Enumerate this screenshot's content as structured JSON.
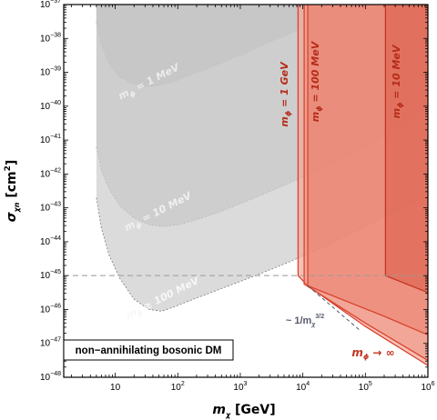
{
  "chart_data": {
    "type": "area",
    "title": "",
    "xscale": "log",
    "yscale": "log",
    "xlim": [
      1.5,
      1000000
    ],
    "ylim": [
      1e-48,
      1e-37
    ],
    "xlabel": {
      "main": "m",
      "sub": "χ",
      "unit": " [GeV]"
    },
    "ylabel": {
      "main": "σ",
      "sub": "χn",
      "unit": " [cm",
      "sup": "2",
      "close": "]"
    },
    "x_ticks": [
      {
        "base": "10",
        "exp": "",
        "v": 10
      },
      {
        "base": "10",
        "exp": "2",
        "v": 100
      },
      {
        "base": "10",
        "exp": "3",
        "v": 1000
      },
      {
        "base": "10",
        "exp": "4",
        "v": 10000
      },
      {
        "base": "10",
        "exp": "5",
        "v": 100000
      },
      {
        "base": "10",
        "exp": "6",
        "v": 1000000
      }
    ],
    "y_ticks": [
      {
        "base": "10",
        "exp": "−37",
        "v": -37
      },
      {
        "base": "10",
        "exp": "−38",
        "v": -38
      },
      {
        "base": "10",
        "exp": "−39",
        "v": -39
      },
      {
        "base": "10",
        "exp": "−40",
        "v": -40
      },
      {
        "base": "10",
        "exp": "−41",
        "v": -41
      },
      {
        "base": "10",
        "exp": "−42",
        "v": -42
      },
      {
        "base": "10",
        "exp": "−43",
        "v": -43
      },
      {
        "base": "10",
        "exp": "−44",
        "v": -44
      },
      {
        "base": "10",
        "exp": "−45",
        "v": -45
      },
      {
        "base": "10",
        "exp": "−46",
        "v": -46
      },
      {
        "base": "10",
        "exp": "−47",
        "v": -47
      },
      {
        "base": "10",
        "exp": "−48",
        "v": -48
      }
    ],
    "gray_regions": [
      {
        "name": "m_phi_1MeV",
        "label": "m",
        "sub": "ϕ",
        "rest": " = 1 MeV",
        "color": "#8c8c8c",
        "opacity": 0.55,
        "label_color": "#ececec",
        "lower": [
          [
            5,
            -37.5
          ],
          [
            6,
            -38.2
          ],
          [
            8,
            -38.75
          ],
          [
            12,
            -39.15
          ],
          [
            20,
            -39.35
          ],
          [
            30,
            -39.42
          ],
          [
            45,
            -39.4
          ],
          [
            80,
            -39.3
          ],
          [
            150,
            -39.1
          ],
          [
            400,
            -38.8
          ],
          [
            1000,
            -38.5
          ],
          [
            3000,
            -38.1
          ],
          [
            10000,
            -37.7
          ],
          [
            30000,
            -37.3
          ],
          [
            60000,
            -37
          ]
        ],
        "top": -37
      },
      {
        "name": "m_phi_10MeV",
        "label": "m",
        "sub": "ϕ",
        "rest": " = 10 MeV",
        "color": "#a6a6a6",
        "opacity": 0.6,
        "label_color": "#f0f0f0",
        "lower": [
          [
            5,
            -41.2
          ],
          [
            6,
            -41.9
          ],
          [
            8,
            -42.45
          ],
          [
            12,
            -42.95
          ],
          [
            20,
            -43.3
          ],
          [
            35,
            -43.5
          ],
          [
            60,
            -43.55
          ],
          [
            100,
            -43.5
          ],
          [
            200,
            -43.35
          ],
          [
            500,
            -43.1
          ],
          [
            2000,
            -42.65
          ],
          [
            10000,
            -42.1
          ],
          [
            40000,
            -41.6
          ],
          [
            150000,
            -41.05
          ],
          [
            600000,
            -40.4
          ],
          [
            1000000,
            -40.1
          ]
        ],
        "top": -37
      },
      {
        "name": "m_phi_ge_100MeV",
        "label": "m",
        "sub": "ϕ",
        "rest": " ≥ 100 MeV",
        "color": "#cfcfcf",
        "opacity": 0.75,
        "label_color": "#f7f7f7",
        "lower": [
          [
            5,
            -42.7
          ],
          [
            6,
            -43.6
          ],
          [
            8,
            -44.4
          ],
          [
            12,
            -45.1
          ],
          [
            20,
            -45.7
          ],
          [
            35,
            -46.0
          ],
          [
            55,
            -46.05
          ],
          [
            80,
            -45.95
          ],
          [
            150,
            -45.75
          ],
          [
            400,
            -45.45
          ],
          [
            1500,
            -45.05
          ],
          [
            6000,
            -44.6
          ],
          [
            25000,
            -44.1
          ],
          [
            100000,
            -43.55
          ],
          [
            400000,
            -43.0
          ],
          [
            1000000,
            -42.6
          ]
        ],
        "top": -37
      }
    ],
    "red_regions": [
      {
        "name": "m_phi_inf",
        "label_main": "m",
        "label_sub": "ϕ",
        "label_rest": " → ∞",
        "color": "#f4a698",
        "opacity": 0.7,
        "stroke": "#d9432e",
        "boundary": [
          [
            8400,
            -37
          ],
          [
            8400,
            -45.0
          ],
          [
            12000,
            -45.3
          ],
          [
            100000,
            -46.5
          ],
          [
            1000000,
            -47.65
          ]
        ]
      },
      {
        "name": "m_phi_1GeV",
        "label_main": "m",
        "label_sub": "ϕ",
        "label_rest": " = 1 GeV",
        "color": "#ef8f7e",
        "opacity": 0.55,
        "stroke": "#d9432e",
        "boundary": [
          [
            10500,
            -37
          ],
          [
            10500,
            -45.25
          ],
          [
            100000,
            -46.4
          ],
          [
            1000000,
            -47.5
          ]
        ]
      },
      {
        "name": "m_phi_100MeV",
        "label_main": "m",
        "label_sub": "ϕ",
        "label_rest": " = 100 MeV",
        "color": "#ea7866",
        "opacity": 0.45,
        "stroke": "#d9432e",
        "boundary": [
          [
            12000,
            -37
          ],
          [
            12000,
            -45.3
          ],
          [
            200000,
            -46.2
          ],
          [
            1000000,
            -46.75
          ]
        ]
      },
      {
        "name": "m_phi_10MeV_red",
        "label_main": "m",
        "label_sub": "ϕ",
        "label_rest": " = 10 MeV",
        "color": "#d8563f",
        "opacity": 0.5,
        "stroke": "#c0341f",
        "boundary": [
          [
            210000,
            -37
          ],
          [
            210000,
            -45.0
          ],
          [
            1000000,
            -45.5
          ]
        ]
      }
    ],
    "reference_line": {
      "y": -45.0,
      "style": "dashed",
      "color": "#999999"
    },
    "slope_line": {
      "from": [
        12000,
        -45.3
      ],
      "to": [
        80000,
        -46.6
      ],
      "label_main": "~ 1/m",
      "label_sub": "χ",
      "label_sup": "3/2",
      "color": "#555a6a"
    },
    "annotation_box": {
      "text": "non−annihilating bosonic DM"
    }
  }
}
